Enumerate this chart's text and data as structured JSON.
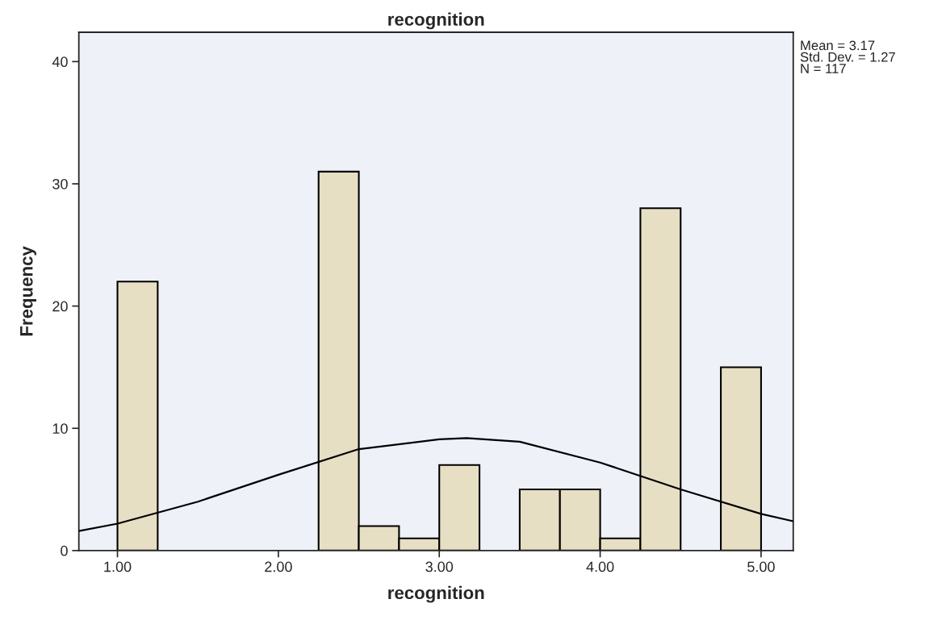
{
  "chart_data": {
    "type": "histogram",
    "title": "recognition",
    "xlabel": "recognition",
    "ylabel": "Frequency",
    "bins": [
      1.0,
      1.25,
      1.5,
      1.75,
      2.0,
      2.25,
      2.5,
      2.75,
      3.0,
      3.25,
      3.5,
      3.75,
      4.0,
      4.25,
      4.5,
      4.75,
      5.0
    ],
    "values": [
      22,
      0,
      0,
      0,
      0,
      31,
      2,
      1,
      7,
      0,
      5,
      5,
      1,
      28,
      0,
      15
    ],
    "color": "#e6dfc3",
    "series": [
      {
        "type": "line",
        "color": "#000000",
        "x": [
          0.76,
          1.0,
          1.5,
          2.0,
          2.5,
          3.0,
          3.17,
          3.5,
          4.0,
          4.5,
          5.0,
          5.2
        ],
        "values": [
          1.6,
          2.2,
          4.0,
          6.2,
          8.3,
          9.1,
          9.2,
          8.9,
          7.2,
          5.0,
          3.0,
          2.4
        ]
      }
    ],
    "xlim": [
      0.76,
      5.2
    ],
    "ylim": [
      0,
      42.4
    ],
    "xticks": [
      {
        "value": 1,
        "label": "1.00"
      },
      {
        "value": 2,
        "label": "2.00"
      },
      {
        "value": 3,
        "label": "3.00"
      },
      {
        "value": 4,
        "label": "4.00"
      },
      {
        "value": 5,
        "label": "5.00"
      }
    ],
    "yticks": [
      0,
      10,
      20,
      30,
      40
    ],
    "annotations": [
      "Mean = 3.17\nStd. Dev. = 1.27\nN = 117"
    ],
    "grid": false,
    "legend": false
  }
}
